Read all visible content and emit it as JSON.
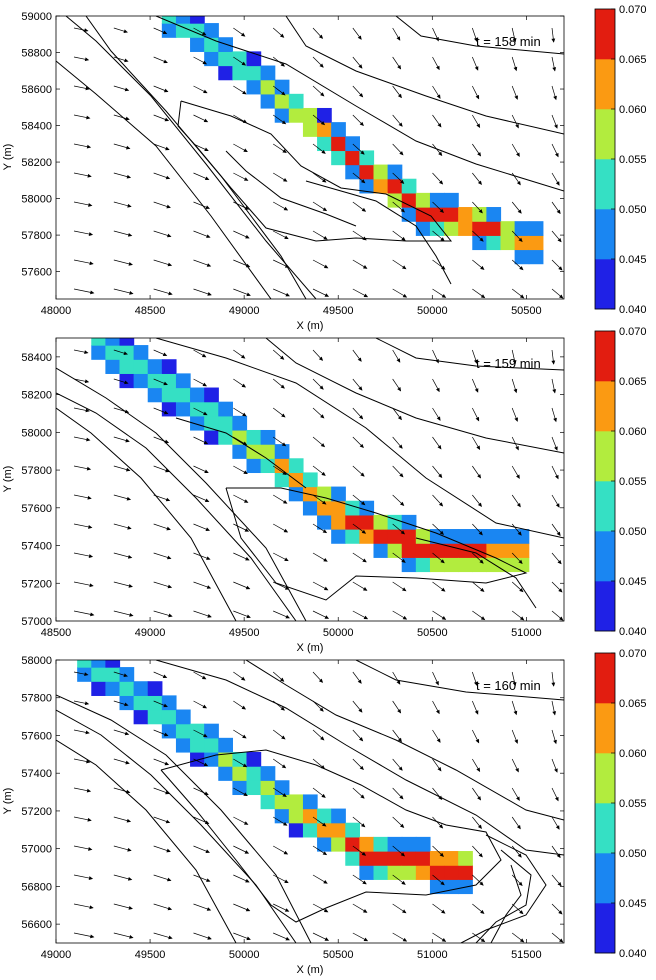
{
  "colormap": {
    "levels": [
      0.04,
      0.045,
      0.05,
      0.055,
      0.06,
      0.065,
      0.07
    ],
    "tick_labels": [
      "0.040",
      "0.045",
      "0.050",
      "0.055",
      "0.060",
      "0.065",
      "0.070"
    ],
    "colors": [
      "#1f21e6",
      "#1a86f2",
      "#35e0c4",
      "#b2ec3e",
      "#fb9a12",
      "#e21d10"
    ]
  },
  "chart_data": [
    {
      "type": "filled-contour",
      "annotation": "t = 158 min",
      "xlabel": "X (m)",
      "ylabel": "Y (m)",
      "xlim": [
        48000,
        50700
      ],
      "ylim": [
        57450,
        59000
      ],
      "xticks": [
        48000,
        48500,
        49000,
        49500,
        50000,
        50500
      ],
      "yticks": [
        57600,
        57800,
        58000,
        58200,
        58400,
        58600,
        58800,
        59000
      ],
      "plume": {
        "ridge": [
          [
            48620,
            59000
          ],
          [
            49200,
            58550
          ],
          [
            49700,
            58120
          ],
          [
            49980,
            57920
          ],
          [
            50230,
            57870
          ],
          [
            50500,
            57750
          ]
        ],
        "half_width_y": 65,
        "peak": {
          "x": 49930,
          "y": 57920,
          "value": 0.069
        }
      },
      "flow_direction": "south-east, bending to south in upper-right"
    },
    {
      "type": "filled-contour",
      "annotation": "t = 159 min",
      "xlabel": "X (m)",
      "ylabel": "Y (m)",
      "xlim": [
        48500,
        51200
      ],
      "ylim": [
        57000,
        58500
      ],
      "xticks": [
        48500,
        49000,
        49500,
        50000,
        50500,
        51000
      ],
      "yticks": [
        57000,
        57200,
        57400,
        57600,
        57800,
        58000,
        58200,
        58400
      ],
      "plume": {
        "ridge": [
          [
            48700,
            58500
          ],
          [
            49300,
            58100
          ],
          [
            49700,
            57820
          ],
          [
            50000,
            57560
          ],
          [
            50500,
            57360
          ],
          [
            50950,
            57350
          ]
        ],
        "half_width_y": 75,
        "peak": {
          "x": 50400,
          "y": 57380,
          "value": 0.07
        }
      },
      "flow_direction": "south-east, bending to south in upper-right"
    },
    {
      "type": "filled-contour",
      "annotation": "t = 160 min",
      "xlabel": "X (m)",
      "ylabel": "Y (m)",
      "xlim": [
        49000,
        51700
      ],
      "ylim": [
        56500,
        58000
      ],
      "xticks": [
        49000,
        49500,
        50000,
        50500,
        51000,
        51500
      ],
      "yticks": [
        56600,
        56800,
        57000,
        57200,
        57400,
        57600,
        57800,
        58000
      ],
      "plume": {
        "ridge": [
          [
            49150,
            58000
          ],
          [
            49800,
            57550
          ],
          [
            50250,
            57220
          ],
          [
            50700,
            56950
          ],
          [
            51100,
            56900
          ]
        ],
        "half_width_y": 70,
        "peak": {
          "x": 50900,
          "y": 56880,
          "value": 0.07
        }
      },
      "flow_direction": "south-east, bending to south in upper-right"
    }
  ]
}
